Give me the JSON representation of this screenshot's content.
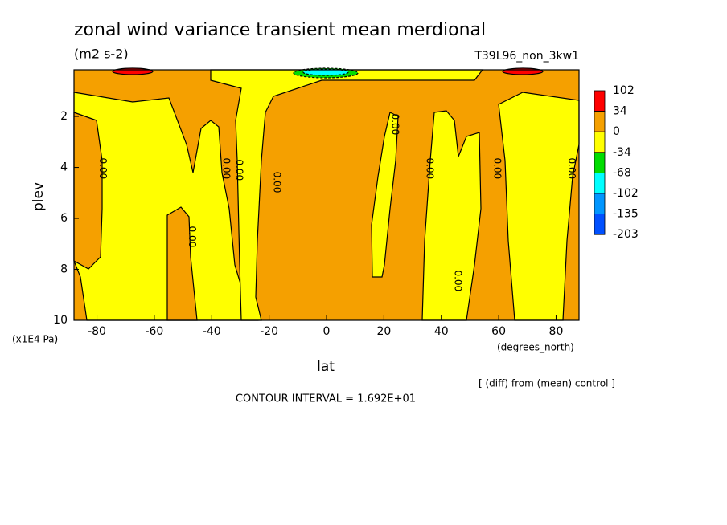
{
  "chart_data": {
    "type": "contour",
    "title": "zonal wind variance transient mean merdional",
    "subtitle": "(m2 s-2)",
    "run_label": "T39L96_non_3kw1",
    "xlabel": "lat",
    "x_unit": "(degrees_north)",
    "ylabel": "plev",
    "y_unit": "(x1E4 Pa)",
    "note": "[ (diff) from (mean) control ]",
    "contour_interval": "CONTOUR INTERVAL = 1.692E+01",
    "xlim": [
      -88,
      88
    ],
    "xticks": [
      -80,
      -60,
      -40,
      -20,
      0,
      20,
      40,
      60,
      80
    ],
    "ylim": [
      10,
      0.17
    ],
    "yticks": [
      2,
      4,
      6,
      8,
      10
    ],
    "colorbar": {
      "levels": [
        102,
        34,
        0,
        -34,
        -68,
        -102,
        -135,
        -203
      ],
      "colors": [
        "#ff0000",
        "#f5a000",
        "#ffff00",
        "#00dd00",
        "#00ffff",
        "#0096ff",
        "#0050ff"
      ]
    },
    "contour_labels": {
      "values": [
        0,
        0,
        0,
        0,
        0,
        0,
        0,
        0,
        0,
        0
      ],
      "value_labels": [
        "0.00",
        "0.00",
        "0.00",
        "0.00",
        "0.00",
        "0.00",
        "0.00",
        "0.00",
        "0.00",
        "0.00"
      ],
      "x": [
        -78,
        -47,
        -35,
        -30.5,
        -17.4,
        23.8,
        35.9,
        45.7,
        59.4,
        85.4
      ],
      "y": [
        4.04,
        6.72,
        4.04,
        4.1,
        4.58,
        2.31,
        4.04,
        8.45,
        4.04,
        4.04
      ]
    }
  }
}
